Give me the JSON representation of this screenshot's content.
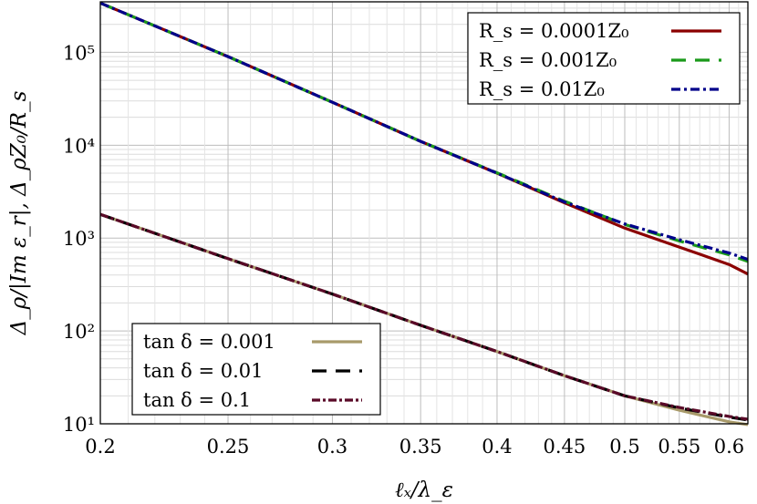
{
  "chart_data": {
    "type": "line",
    "xscale": "log",
    "yscale": "log",
    "xlim": [
      0.2,
      0.62
    ],
    "ylim": [
      10,
      350000
    ],
    "grid": true,
    "xlabel": "ℓₓ/λ_ε",
    "ylabel": "Δ_ρ/|Im ε_r|,    Δ_ρZ₀/R_s",
    "x_ticks": [
      0.2,
      0.25,
      0.3,
      0.35,
      0.4,
      0.45,
      0.5,
      0.55,
      0.6
    ],
    "x_tick_labels": [
      "0.2",
      "0.25",
      "0.3",
      "0.35",
      "0.4",
      "0.45",
      "0.5",
      "0.55",
      "0.6"
    ],
    "y_ticks": [
      10,
      100,
      1000,
      10000,
      100000
    ],
    "y_tick_labels": [
      "10¹",
      "10²",
      "10³",
      "10⁴",
      "10⁵"
    ],
    "legends": [
      {
        "placement": "top-right",
        "entries": [
          {
            "label": "R_s = 0.0001Z₀",
            "series": 0
          },
          {
            "label": "R_s = 0.001Z₀",
            "series": 1
          },
          {
            "label": "R_s = 0.01Z₀",
            "series": 2
          }
        ]
      },
      {
        "placement": "bottom-left",
        "entries": [
          {
            "label": "tan δ = 0.001",
            "series": 3
          },
          {
            "label": "tan δ = 0.01",
            "series": 4
          },
          {
            "label": "tan δ = 0.1",
            "series": 5
          }
        ]
      }
    ],
    "series": [
      {
        "name": "R_s = 0.0001Z₀",
        "color": "#8b0000",
        "dash": "solid",
        "x": [
          0.2,
          0.25,
          0.3,
          0.35,
          0.4,
          0.45,
          0.5,
          0.55,
          0.6,
          0.62
        ],
        "y": [
          340000,
          90000,
          29000,
          11000,
          5000,
          2400,
          1280,
          800,
          520,
          410
        ]
      },
      {
        "name": "R_s = 0.001Z₀",
        "color": "#1a9a1a",
        "dash": "dashed",
        "x": [
          0.2,
          0.25,
          0.3,
          0.35,
          0.4,
          0.45,
          0.5,
          0.55,
          0.6,
          0.62
        ],
        "y": [
          340000,
          90000,
          29000,
          11000,
          5050,
          2500,
          1400,
          930,
          660,
          560
        ]
      },
      {
        "name": "R_s = 0.01Z₀",
        "color": "#00008b",
        "dash": "dashdot",
        "x": [
          0.2,
          0.25,
          0.3,
          0.35,
          0.4,
          0.45,
          0.5,
          0.55,
          0.6,
          0.62
        ],
        "y": [
          340000,
          90000,
          29000,
          11000,
          5000,
          2450,
          1420,
          960,
          690,
          590
        ]
      },
      {
        "name": "tan δ = 0.001",
        "color": "#a89a6a",
        "dash": "solid",
        "x": [
          0.2,
          0.25,
          0.3,
          0.35,
          0.4,
          0.45,
          0.5,
          0.55,
          0.6,
          0.62
        ],
        "y": [
          1800,
          600,
          250,
          115,
          60,
          33,
          20,
          14,
          10.5,
          9.8
        ]
      },
      {
        "name": "tan δ = 0.01",
        "color": "#000000",
        "dash": "dashed",
        "x": [
          0.2,
          0.25,
          0.3,
          0.35,
          0.4,
          0.45,
          0.5,
          0.55,
          0.6,
          0.62
        ],
        "y": [
          1800,
          600,
          250,
          115,
          60,
          33,
          20,
          14.8,
          11.8,
          11.0
        ]
      },
      {
        "name": "tan δ = 0.1",
        "color": "#5a0a28",
        "dash": "dotted",
        "x": [
          0.2,
          0.25,
          0.3,
          0.35,
          0.4,
          0.45,
          0.5,
          0.55,
          0.6,
          0.62
        ],
        "y": [
          1800,
          600,
          250,
          115,
          60,
          33,
          20,
          15,
          12,
          11.2
        ]
      }
    ]
  }
}
